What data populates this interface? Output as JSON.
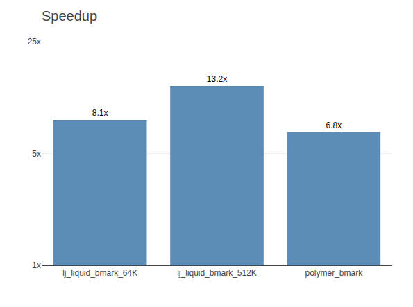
{
  "chart_data": {
    "type": "bar",
    "title": "Speedup",
    "categories": [
      "lj_liquid_bmark_64K",
      "lj_liquid_bmark_512K",
      "polymer_bmark"
    ],
    "values": [
      8.1,
      13.2,
      6.8
    ],
    "value_labels": [
      "8.1x",
      "13.2x",
      "6.8x"
    ],
    "data_labels": true,
    "color": "#5B8DB8",
    "log": "y",
    "ylim": [
      1,
      25
    ],
    "yticks": [
      {
        "value": 1,
        "label": "1x"
      },
      {
        "value": 5,
        "label": "5x"
      },
      {
        "value": 25,
        "label": "25x"
      }
    ],
    "grid": true
  }
}
